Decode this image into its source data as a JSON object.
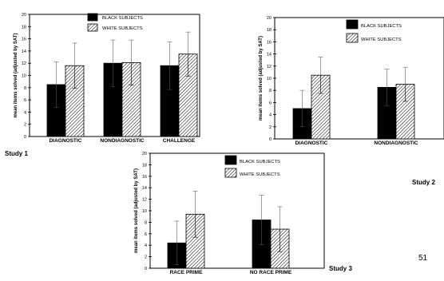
{
  "page_number": "51",
  "colors": {
    "black": "#000000",
    "white": "#ffffff",
    "hatch": "#000000"
  },
  "chart_data": [
    {
      "type": "bar",
      "study_label": "Study 1",
      "ylabel": "mean items solved (adjusted by SAT)",
      "ylim": [
        0,
        20
      ],
      "yticks": [
        "0",
        "2",
        "4",
        "6",
        "8",
        "10",
        "12",
        "14",
        "16",
        "18",
        "20"
      ],
      "categories": [
        "DIAGNOSTIC",
        "NONDIAGNOSTIC",
        "CHALLENGE"
      ],
      "legend_position": "top-center",
      "series": [
        {
          "name": "BLACK SUBJECTS",
          "fill": "solid-black",
          "values": [
            8.5,
            12.0,
            11.6
          ],
          "errors": [
            3.7,
            3.8,
            3.9
          ]
        },
        {
          "name": "WHITE SUBJECTS",
          "fill": "hatched",
          "values": [
            11.6,
            12.1,
            13.5
          ],
          "errors": [
            3.7,
            3.7,
            3.6
          ]
        }
      ]
    },
    {
      "type": "bar",
      "study_label": "Study 2",
      "ylabel": "mean items solved (adjusted by SAT)",
      "ylim": [
        0,
        20
      ],
      "yticks": [
        "0",
        "2",
        "4",
        "6",
        "8",
        "10",
        "12",
        "14",
        "16",
        "18",
        "20"
      ],
      "categories": [
        "DIAGNOSTIC",
        "NONDIAGNOSTIC"
      ],
      "legend_position": "top-center",
      "series": [
        {
          "name": "BLACK SUBJECTS",
          "fill": "solid-black",
          "values": [
            5.0,
            8.5
          ],
          "errors": [
            3.0,
            3.0
          ]
        },
        {
          "name": "WHITE SUBJECTS",
          "fill": "hatched",
          "values": [
            10.5,
            9.0
          ],
          "errors": [
            3.0,
            2.8
          ]
        }
      ]
    },
    {
      "type": "bar",
      "study_label": "Study 3",
      "ylabel": "mean items solved (adjusted by SAT)",
      "ylim": [
        0,
        20
      ],
      "yticks": [
        "0",
        "2",
        "4",
        "6",
        "8",
        "10",
        "12",
        "14",
        "16",
        "18",
        "20"
      ],
      "categories": [
        "RACE PRIME",
        "NO RACE PRIME"
      ],
      "legend_position": "top-center",
      "series": [
        {
          "name": "BLACK SUBJECTS",
          "fill": "solid-black",
          "values": [
            4.4,
            8.4
          ],
          "errors": [
            3.8,
            4.3
          ]
        },
        {
          "name": "WHITE SUBJECTS",
          "fill": "hatched",
          "values": [
            9.4,
            6.8
          ],
          "errors": [
            4.0,
            3.9
          ]
        }
      ]
    }
  ]
}
